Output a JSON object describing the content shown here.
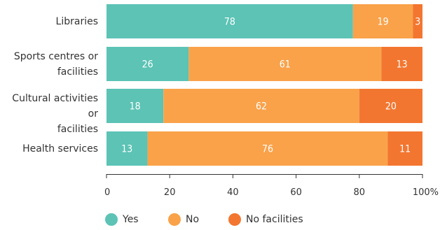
{
  "chart_data": {
    "type": "bar",
    "orientation": "horizontal",
    "stacked": true,
    "categories": [
      "Libraries",
      "Sports centres or facilities",
      "Cultural activities or facilities",
      "Health services"
    ],
    "category_lines": [
      [
        "Libraries"
      ],
      [
        "Sports centres or",
        "facilities"
      ],
      [
        "Cultural activities or",
        "facilities"
      ],
      [
        "Health services"
      ]
    ],
    "series": [
      {
        "name": "Yes",
        "values": [
          78,
          26,
          18,
          13
        ],
        "color": "#5cc3b5"
      },
      {
        "name": "No",
        "values": [
          19,
          61,
          62,
          76
        ],
        "color": "#f9a24a"
      },
      {
        "name": "No facilities",
        "values": [
          3,
          13,
          20,
          11
        ],
        "color": "#f37630"
      }
    ],
    "xlim": [
      0,
      100
    ],
    "xticks": [
      0,
      20,
      40,
      60,
      80,
      100
    ],
    "xtick_labels": [
      "0",
      "20",
      "40",
      "60",
      "80",
      "100%"
    ],
    "grid": false,
    "legend_position": "bottom-left"
  }
}
